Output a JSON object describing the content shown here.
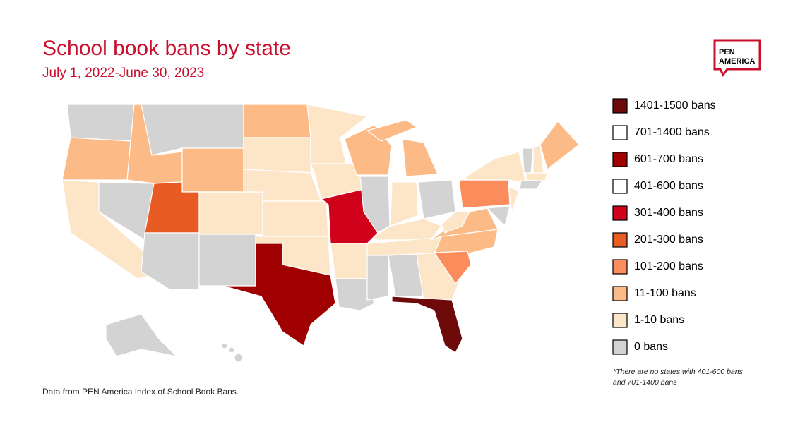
{
  "header": {
    "title": "School book bans by state",
    "subtitle": "July 1, 2022-June 30, 2023"
  },
  "logo": {
    "line1": "PEN",
    "line2": "AMERICA"
  },
  "legend": [
    {
      "label": "1401-1500 bans",
      "color": "#6e0a0a"
    },
    {
      "label": "701-1400 bans",
      "color": "#ffffff"
    },
    {
      "label": "601-700 bans",
      "color": "#a10000"
    },
    {
      "label": "401-600 bans",
      "color": "#ffffff"
    },
    {
      "label": "301-400 bans",
      "color": "#d0021b"
    },
    {
      "label": "201-300 bans",
      "color": "#e85b22"
    },
    {
      "label": "101-200 bans",
      "color": "#fb8c5c"
    },
    {
      "label": "11-100 bans",
      "color": "#fcba87"
    },
    {
      "label": "1-10 bans",
      "color": "#fde5c8"
    },
    {
      "label": "0 bans",
      "color": "#d3d3d3"
    }
  ],
  "footnote": {
    "line1": "*There are no states with 401-600 bans",
    "line2": "and 701-1400 bans"
  },
  "source": "Data from PEN America Index of School Book Bans."
}
